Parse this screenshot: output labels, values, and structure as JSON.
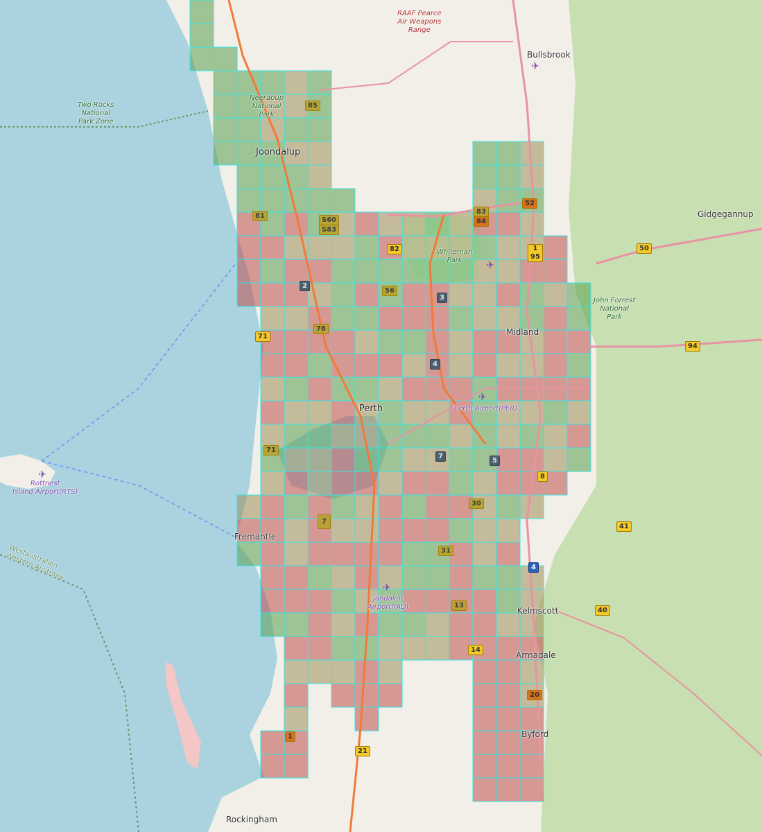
{
  "map": {
    "colors": {
      "sea": "#aad3df",
      "land": "#f2efe9",
      "forest": "#c8dfb2",
      "region_red": "#c0504d",
      "region_green": "#5aa050",
      "region_olive": "#9e8f5a",
      "boundary": "#33e6e6",
      "road_primary": "#e892a2",
      "road_motorway": "#f07a3a"
    },
    "places": {
      "raaf": "RAAF Pearce\nAir Weapons\nRange",
      "bullsbrook": "Bullsbrook",
      "two_rocks": "Two Rocks\nNational\nPark Zone",
      "neerabup": "Neerabup\nNational\nPark",
      "joondalup": "Joondalup",
      "gidgegannup": "Gidgegannup",
      "whiteman": "Whiteman\nPark",
      "john_forrest": "John Forrest\nNational\nPark",
      "midland": "Midland",
      "perth": "Perth",
      "perth_airport": "Perth Airport(PER)",
      "rottnest": "Rottnest\nIsland Airport(RTS)",
      "state_boundary": "Westaustralien\nWestern Australia",
      "fremantle": "Fremantle",
      "jandakot": "Jandakot\nAirport(JAD)",
      "kelmscott": "Kelmscott",
      "armadale": "Armadale",
      "byford": "Byford",
      "rockingham": "Rockingham"
    },
    "route_shields": [
      "85",
      "83",
      "84",
      "52",
      "81",
      "S60",
      "S83",
      "82",
      "1\n95",
      "50",
      "2",
      "56",
      "3",
      "71",
      "76",
      "4",
      "94",
      "71",
      "7",
      "5",
      "8",
      "30",
      "41",
      "7",
      "31",
      "4",
      "13",
      "40",
      "14",
      "20",
      "1",
      "21"
    ]
  }
}
